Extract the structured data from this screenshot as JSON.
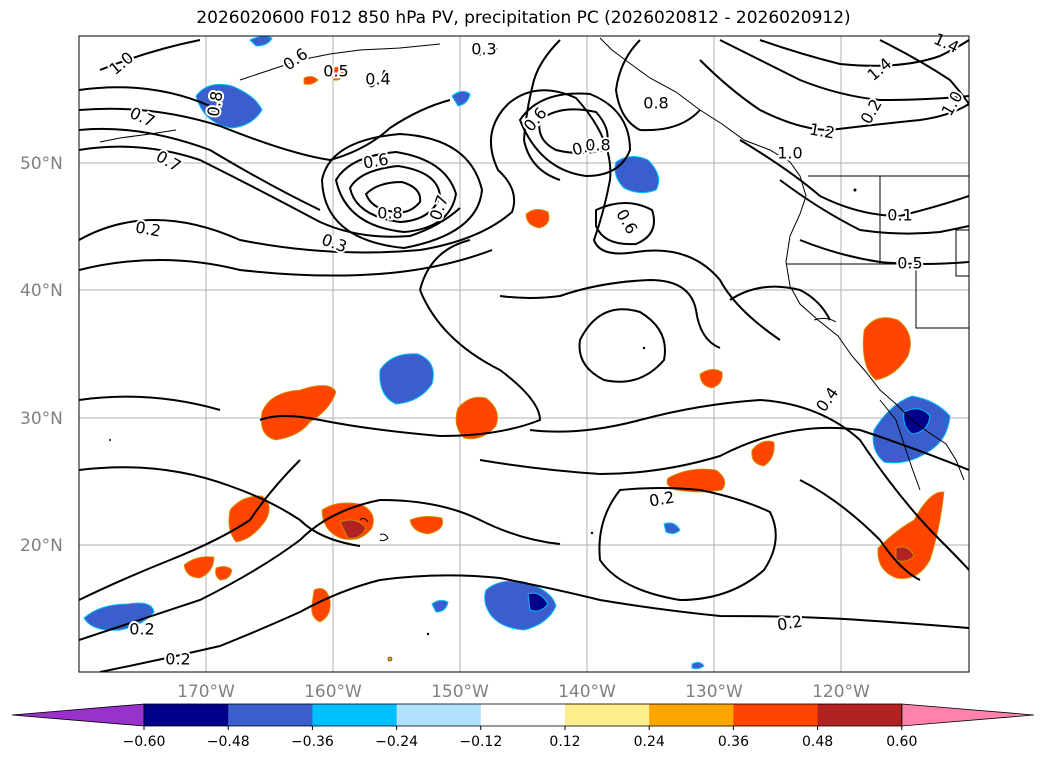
{
  "title": "2026020600 F012 850 hPa PV, precipitation PC (2026020812 - 2026020912)",
  "map": {
    "lat_ticks": [
      "50°N",
      "40°N",
      "30°N",
      "20°N"
    ],
    "lon_ticks": [
      "170°W",
      "160°W",
      "150°W",
      "140°W",
      "130°W",
      "120°W"
    ],
    "contour_labels": [
      "1.0",
      "0.6",
      "0.5",
      "0.4",
      "0.3",
      "1.4",
      "0.8",
      "0.7",
      "0.6",
      "1.4",
      "1.0",
      "0.7",
      "0.8",
      "0.2",
      "1.2",
      "0.4",
      "0.6",
      "1.0",
      "0.8",
      "0.8",
      "0.7",
      "0.6",
      "0.8",
      "0.1",
      "0.2",
      "0.3",
      "0.5",
      "0.3",
      "0.4",
      "0.2",
      "0.2",
      "0.2",
      "0.2"
    ]
  },
  "colorbar": {
    "ticks": [
      "−0.60",
      "−0.48",
      "−0.36",
      "−0.24",
      "−0.12",
      "0.12",
      "0.24",
      "0.36",
      "0.48",
      "0.60"
    ],
    "colors": [
      "#9932CC",
      "#00008B",
      "#3A5FCD",
      "#00BFFF",
      "#B0E2FF",
      "#FFFFFF",
      "#FFEC8B",
      "#FFA500",
      "#FF4500",
      "#B22222",
      "#FF82AB"
    ]
  }
}
